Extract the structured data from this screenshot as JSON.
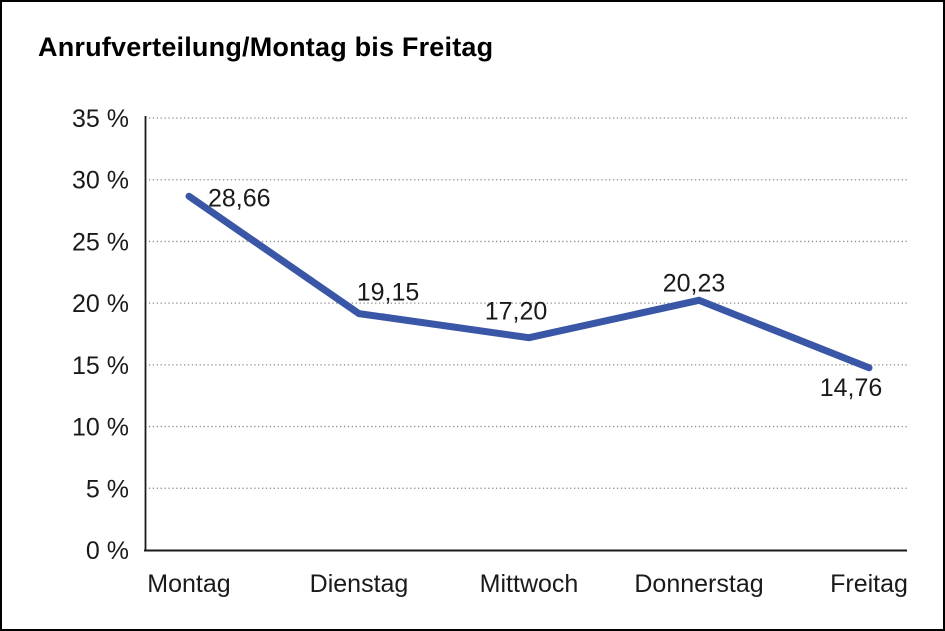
{
  "page": {
    "background": "#ffffff",
    "frame_border_color": "#000000"
  },
  "chart_data": {
    "type": "line",
    "title": "Anrufverteilung/Montag bis Freitag",
    "categories": [
      "Montag",
      "Dienstag",
      "Mittwoch",
      "Donnerstag",
      "Freitag"
    ],
    "values": [
      28.66,
      19.15,
      17.2,
      20.23,
      14.76
    ],
    "point_labels": [
      "28,66",
      "19,15",
      "17,20",
      "20,23",
      "14,76"
    ],
    "series_name": "Anrufverteilung",
    "xlabel": "",
    "ylabel": "",
    "ylim": [
      0,
      35
    ],
    "y_tick_step": 5,
    "y_ticks": [
      "35 %",
      "30 %",
      "25 %",
      "20 %",
      "15 %",
      "10 %",
      "5 %",
      "0 %"
    ],
    "grid": "horizontal-dotted",
    "legend": "none",
    "line_color": "#3a57a7",
    "grid_color": "#8c8c8c",
    "axis_color": "#1a1a1a",
    "text_color": "#1a1a1a"
  }
}
